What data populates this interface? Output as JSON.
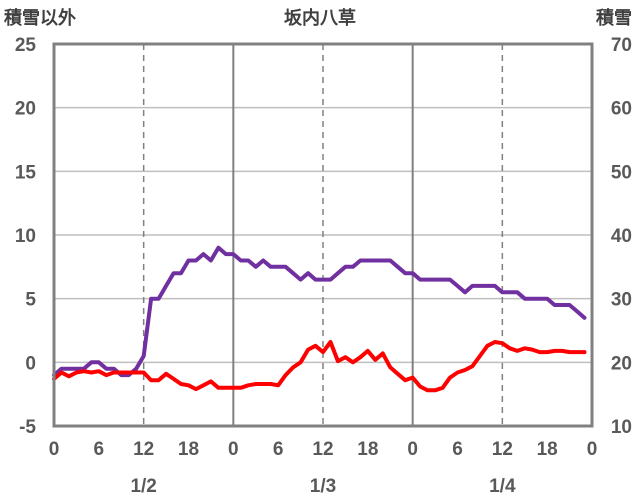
{
  "chart_data": {
    "type": "line",
    "title": "坂内八草",
    "left_axis_label": "積雪以外",
    "right_axis_label": "積雪",
    "left_ylim": [
      -5,
      25
    ],
    "left_yticks": [
      -5,
      0,
      5,
      10,
      15,
      20,
      25
    ],
    "right_ylim": [
      10,
      70
    ],
    "right_yticks": [
      10,
      20,
      30,
      40,
      50,
      60,
      70
    ],
    "x_range_hours": [
      0,
      72
    ],
    "x_tick_labels": [
      "0",
      "6",
      "12",
      "18",
      "0",
      "6",
      "12",
      "18",
      "0",
      "6",
      "12",
      "18",
      "0"
    ],
    "date_labels": [
      "1/2",
      "1/3",
      "1/4"
    ],
    "grid": true,
    "series": [
      {
        "axis": "right",
        "color": "#7030a0",
        "hours": [
          0,
          1,
          2,
          3,
          4,
          5,
          6,
          7,
          8,
          9,
          10,
          11,
          12,
          13,
          14,
          15,
          16,
          17,
          18,
          19,
          20,
          21,
          22,
          23,
          24,
          25,
          26,
          27,
          28,
          29,
          30,
          31,
          32,
          33,
          34,
          35,
          36,
          37,
          38,
          39,
          40,
          41,
          42,
          43,
          44,
          45,
          46,
          47,
          48,
          49,
          50,
          51,
          52,
          53,
          54,
          55,
          56,
          57,
          58,
          59,
          60,
          61,
          62,
          63,
          64,
          65,
          66,
          67,
          68,
          69,
          70,
          71
        ],
        "values": [
          18,
          19,
          19,
          19,
          19,
          20,
          20,
          19,
          19,
          18,
          18,
          19,
          21,
          30,
          30,
          32,
          34,
          34,
          36,
          36,
          37,
          36,
          38,
          37,
          37,
          36,
          36,
          35,
          36,
          35,
          35,
          35,
          34,
          33,
          34,
          33,
          33,
          33,
          34,
          35,
          35,
          36,
          36,
          36,
          36,
          36,
          35,
          34,
          34,
          33,
          33,
          33,
          33,
          33,
          32,
          31,
          32,
          32,
          32,
          32,
          31,
          31,
          31,
          30,
          30,
          30,
          30,
          29,
          29,
          29,
          28,
          27
        ]
      },
      {
        "axis": "left",
        "color": "#ff0000",
        "hours": [
          0,
          1,
          2,
          3,
          4,
          5,
          6,
          7,
          8,
          9,
          10,
          11,
          12,
          13,
          14,
          15,
          16,
          17,
          18,
          19,
          20,
          21,
          22,
          23,
          24,
          25,
          26,
          27,
          28,
          29,
          30,
          31,
          32,
          33,
          34,
          35,
          36,
          37,
          38,
          39,
          40,
          41,
          42,
          43,
          44,
          45,
          46,
          47,
          48,
          49,
          50,
          51,
          52,
          53,
          54,
          55,
          56,
          57,
          58,
          59,
          60,
          61,
          62,
          63,
          64,
          65,
          66,
          67,
          68,
          69,
          70,
          71
        ],
        "values": [
          -1.3,
          -0.8,
          -1.1,
          -0.8,
          -0.7,
          -0.8,
          -0.7,
          -1.0,
          -0.8,
          -0.8,
          -0.8,
          -0.8,
          -0.8,
          -1.4,
          -1.4,
          -0.9,
          -1.3,
          -1.7,
          -1.8,
          -2.1,
          -1.8,
          -1.5,
          -2.0,
          -2.0,
          -2.0,
          -2.0,
          -1.8,
          -1.7,
          -1.7,
          -1.7,
          -1.8,
          -1.0,
          -0.4,
          0.0,
          1.0,
          1.3,
          0.8,
          1.6,
          0.1,
          0.4,
          0.0,
          0.4,
          0.9,
          0.2,
          0.7,
          -0.4,
          -0.9,
          -1.4,
          -1.2,
          -1.9,
          -2.2,
          -2.2,
          -2.0,
          -1.2,
          -0.8,
          -0.6,
          -0.3,
          0.5,
          1.3,
          1.6,
          1.5,
          1.1,
          0.9,
          1.1,
          1.0,
          0.8,
          0.8,
          0.9,
          0.9,
          0.8,
          0.8,
          0.8
        ]
      }
    ]
  }
}
